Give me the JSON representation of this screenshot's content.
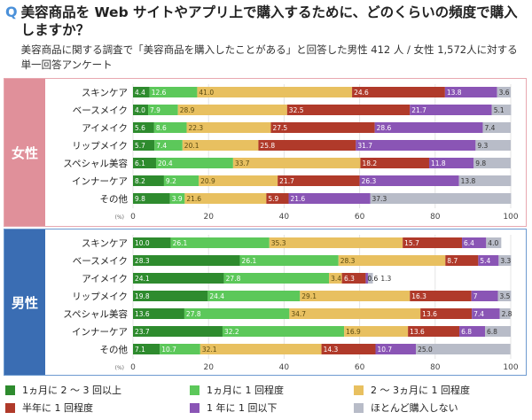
{
  "header": {
    "q_mark": "Q",
    "title": "美容商品を Web サイトやアプリ上で購入するために、どのくらいの頻度で購入しますか？",
    "subtitle": "美容商品に関する調査で「美容商品を購入したことがある」と回答した男性 412 人 / 女性 1,572人に対する単一回答アンケート"
  },
  "chart_data": {
    "type": "bar",
    "orientation": "horizontal",
    "stacked": true,
    "categories": [
      "スキンケア",
      "ベースメイク",
      "アイメイク",
      "リップメイク",
      "スペシャル美容",
      "インナーケア",
      "その他"
    ],
    "xlim": [
      0,
      100
    ],
    "x_ticks": [
      "0",
      "20",
      "40",
      "60",
      "80",
      "100"
    ],
    "x_unit": "(%)",
    "grid": true,
    "series_names": [
      "1ヵ月に 2 ～ 3 回以上",
      "1ヵ月に 1 回程度",
      "2 ～ 3ヵ月に 1 回程度",
      "半年に 1 回程度",
      "1 年に 1 回以下",
      "ほとんど購入しない"
    ],
    "colors": [
      "#2e8b2e",
      "#5cc85a",
      "#e8c060",
      "#b03a2a",
      "#8a55b5",
      "#b8bcc8"
    ],
    "label_colors": [
      "#fff",
      "#fff",
      "#5a4a10",
      "#fff",
      "#fff",
      "#333"
    ],
    "legend_position": "bottom",
    "panels": [
      {
        "name": "女性",
        "color": "#e0909a",
        "border": "#e8a8b0",
        "values": [
          [
            4.4,
            12.6,
            41.0,
            24.6,
            13.8,
            3.6
          ],
          [
            4.0,
            7.9,
            28.9,
            32.5,
            21.7,
            5.1
          ],
          [
            5.6,
            8.6,
            22.3,
            27.5,
            28.6,
            7.4
          ],
          [
            5.7,
            7.4,
            20.1,
            25.8,
            31.7,
            9.3
          ],
          [
            6.1,
            20.4,
            33.7,
            18.2,
            11.8,
            9.8
          ],
          [
            8.2,
            9.2,
            20.9,
            21.7,
            26.3,
            13.8
          ],
          [
            9.8,
            3.9,
            21.6,
            5.9,
            21.6,
            37.3
          ]
        ]
      },
      {
        "name": "男性",
        "color": "#3a6db3",
        "border": "#6d9ad0",
        "values": [
          [
            10.0,
            26.1,
            35.3,
            15.7,
            6.4,
            4.0
          ],
          [
            28.3,
            26.1,
            28.3,
            8.7,
            5.4,
            3.3
          ],
          [
            24.1,
            27.8,
            3.4,
            6.3,
            0.6,
            1.3
          ],
          [
            19.8,
            24.4,
            29.1,
            16.3,
            7,
            3.5
          ],
          [
            13.6,
            27.8,
            34.7,
            13.6,
            7.4,
            2.8
          ],
          [
            23.7,
            32.2,
            16.9,
            13.6,
            6.8,
            6.8
          ],
          [
            7.1,
            10.7,
            32.1,
            14.3,
            10.7,
            25.0
          ]
        ]
      }
    ]
  }
}
